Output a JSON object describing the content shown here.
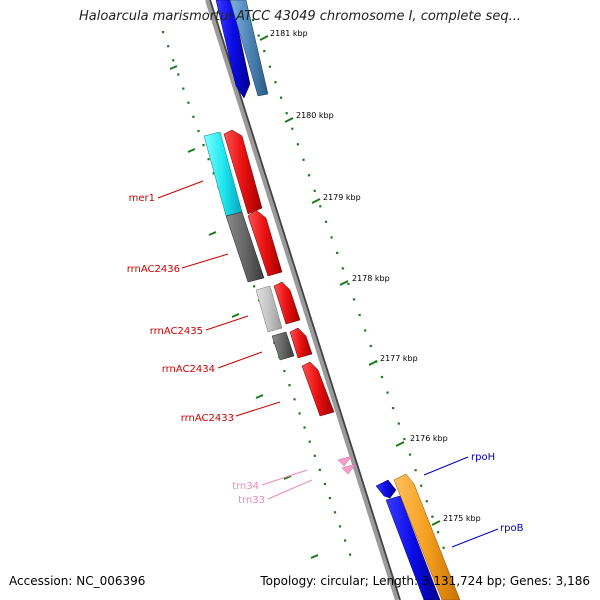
{
  "title": "Haloarcula marismortui ATCC 43049 chromosome I, complete seq...",
  "footer": {
    "accession": "Accession: NC_006396",
    "summary": "Topology: circular; Length: 3,131,724 bp; Genes: 3,186"
  },
  "ruler_labels": [
    "2181 kbp",
    "2180 kbp",
    "2179 kbp",
    "2178 kbp",
    "2177 kbp",
    "2176 kbp",
    "2175 kbp"
  ],
  "gene_labels": {
    "mer1": "mer1",
    "rrnAC2436": "rrnAC2436",
    "rrnAC2435": "rrnAC2435",
    "rrnAC2434": "rrnAC2434",
    "rrnAC2433": "rrnAC2433",
    "trn34": "trn34",
    "trn33": "trn33",
    "rpoH": "rpoH",
    "rpoB": "rpoB"
  },
  "colors": {
    "backbone": "#8a8a8a",
    "tick": "#1a7a1a",
    "forward_cds": "#e01010",
    "label_red": "#cc0000",
    "label_blue": "#0000bb",
    "label_pink": "#ee88bb",
    "trna": "#f4a0c8",
    "blue_cds": "#1010e0",
    "steel_cds": "#4f86b6",
    "orange_cds": "#f4a020",
    "cyan_feature": "#20e8f0"
  }
}
